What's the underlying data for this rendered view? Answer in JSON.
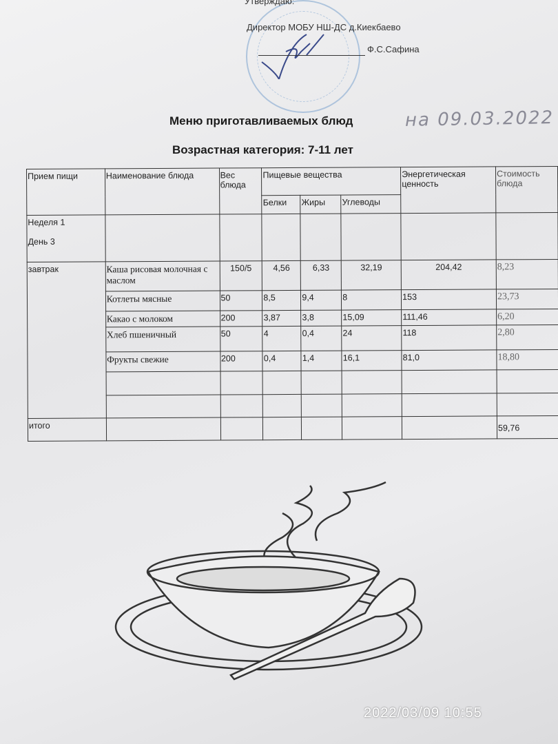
{
  "header": {
    "approve": "Утверждаю:",
    "director": "Директор МОБУ НШ-ДС д.Киекбаево",
    "signatory": "Ф.С.Сафина"
  },
  "title": "Меню приготавливаемых блюд",
  "handwritten_date": "на 09.03.2022",
  "age_category": "Возрастная категория: 7-11 лет",
  "table": {
    "headers": {
      "meal": "Прием пищи",
      "dish": "Наименование блюда",
      "weight": "Вес блюда",
      "nutrients": "Пищевые вещества",
      "protein": "Белки",
      "fat": "Жиры",
      "carbs": "Углеводы",
      "energy": "Энергетическая ценность",
      "cost": "Стоимость блюда"
    },
    "week": "Неделя 1",
    "day": "День 3",
    "meal": "завтрак",
    "rows": [
      {
        "dish": "Каша рисовая молочная с маслом",
        "weight": "150/5",
        "protein": "4,56",
        "fat": "6,33",
        "carbs": "32,19",
        "energy": "204,42",
        "cost": "8,23"
      },
      {
        "dish": "Котлеты мясные",
        "weight": "50",
        "protein": "8,5",
        "fat": "9,4",
        "carbs": "8",
        "energy": "153",
        "cost": "23,73"
      },
      {
        "dish": "Какао с молоком",
        "weight": "200",
        "protein": "3,87",
        "fat": "3,8",
        "carbs": "15,09",
        "energy": "111,46",
        "cost": "6,20"
      },
      {
        "dish": "Хлеб пшеничный",
        "weight": "50",
        "protein": "4",
        "fat": "0,4",
        "carbs": "24",
        "energy": "118",
        "cost": "2,80"
      },
      {
        "dish": "Фрукты свежие",
        "weight": "200",
        "protein": "0,4",
        "fat": "1,4",
        "carbs": "16,1",
        "energy": "81,0",
        "cost": "18,80"
      }
    ],
    "total_label": "итого",
    "total_cost": "59,76"
  },
  "timestamp": "2022/03/09  10:55"
}
